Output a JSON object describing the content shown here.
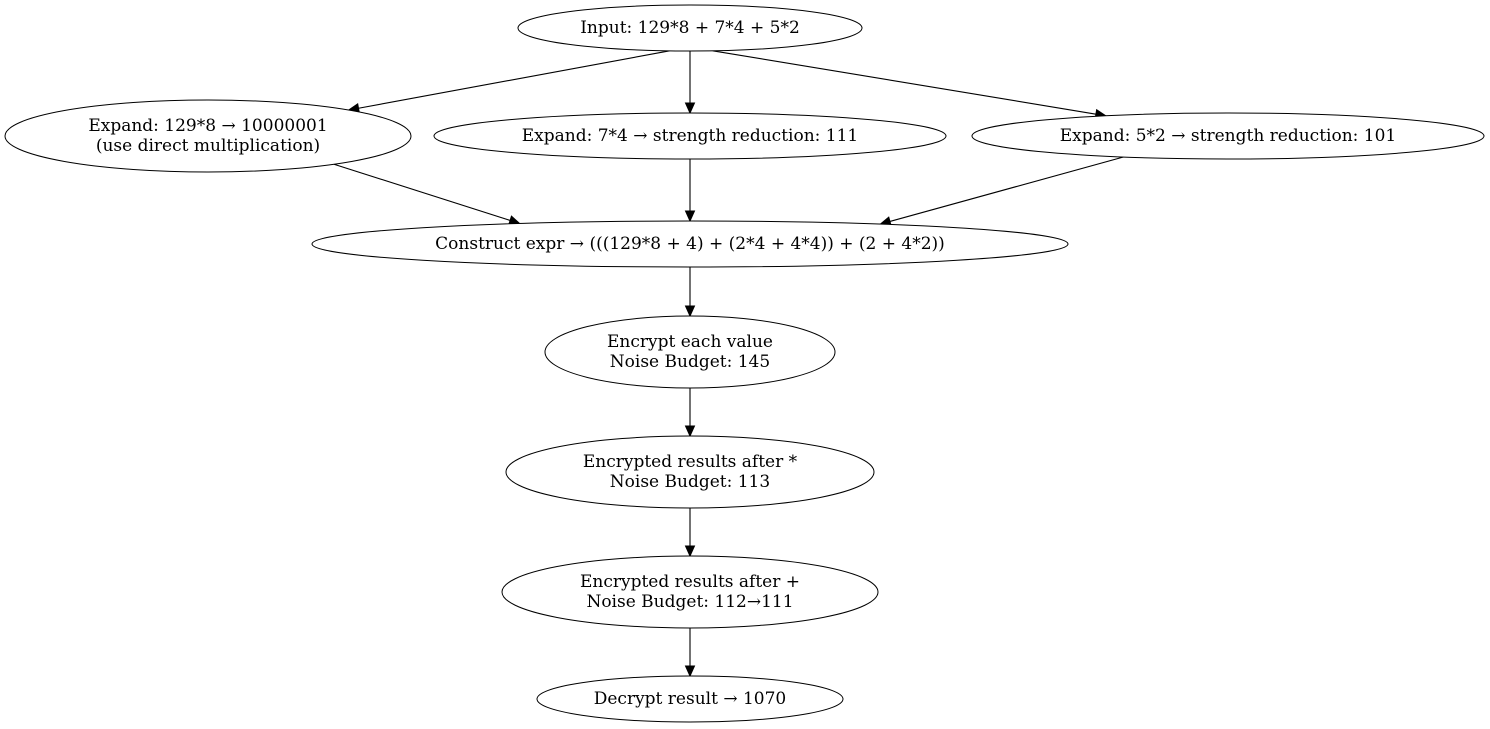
{
  "diagram": {
    "type": "flowchart",
    "nodes": [
      {
        "id": "input",
        "lines": [
          "Input: 129*8 + 7*4 + 5*2"
        ]
      },
      {
        "id": "expand1",
        "lines": [
          "Expand: 129*8 → 10000001",
          "(use direct multiplication)"
        ]
      },
      {
        "id": "expand2",
        "lines": [
          "Expand: 7*4 → strength reduction: 111"
        ]
      },
      {
        "id": "expand3",
        "lines": [
          "Expand: 5*2 → strength reduction: 101"
        ]
      },
      {
        "id": "construct",
        "lines": [
          "Construct expr → (((129*8 + 4) + (2*4 + 4*4)) + (2 + 4*2))"
        ]
      },
      {
        "id": "encrypt",
        "lines": [
          "Encrypt each value",
          "Noise Budget: 145"
        ]
      },
      {
        "id": "after_mul",
        "lines": [
          "Encrypted results after *",
          "Noise Budget: 113"
        ]
      },
      {
        "id": "after_add",
        "lines": [
          "Encrypted results after +",
          "Noise Budget: 112→111"
        ]
      },
      {
        "id": "decrypt",
        "lines": [
          "Decrypt result → 1070"
        ]
      }
    ],
    "edges": [
      {
        "from": "input",
        "to": "expand1"
      },
      {
        "from": "input",
        "to": "expand2"
      },
      {
        "from": "input",
        "to": "expand3"
      },
      {
        "from": "expand1",
        "to": "construct"
      },
      {
        "from": "expand2",
        "to": "construct"
      },
      {
        "from": "expand3",
        "to": "construct"
      },
      {
        "from": "construct",
        "to": "encrypt"
      },
      {
        "from": "encrypt",
        "to": "after_mul"
      },
      {
        "from": "after_mul",
        "to": "after_add"
      },
      {
        "from": "after_add",
        "to": "decrypt"
      }
    ]
  }
}
